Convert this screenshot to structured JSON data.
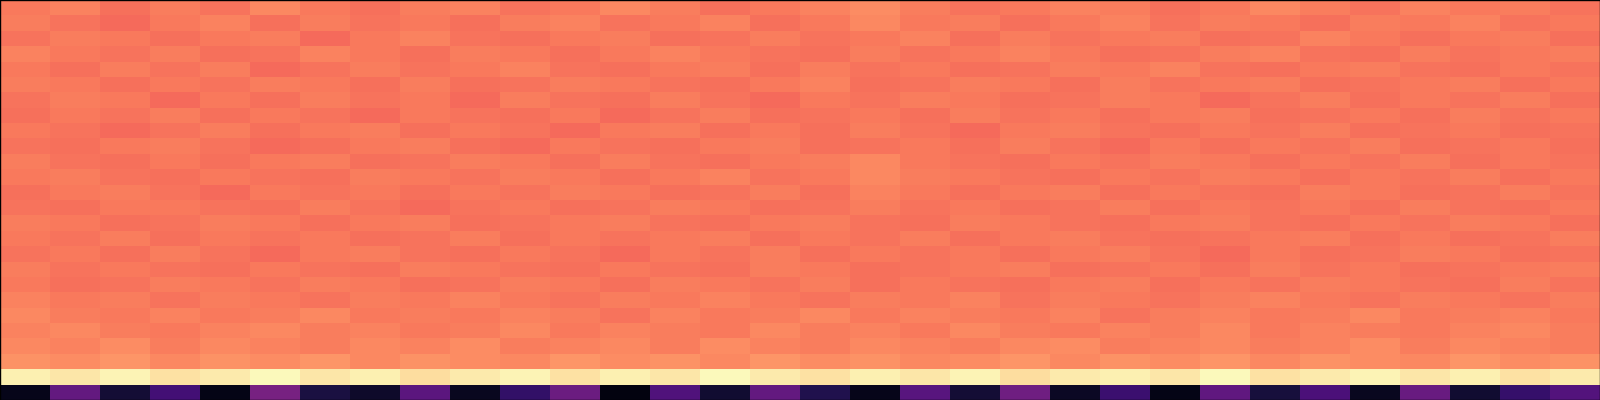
{
  "chart_data": {
    "type": "heatmap",
    "tick_labels": false,
    "color_range": [
      0,
      1
    ],
    "cells": [
      [
        0.72,
        0.74,
        0.7,
        0.73,
        0.71,
        0.75,
        0.72,
        0.7,
        0.73,
        0.74,
        0.71,
        0.72,
        0.75,
        0.73,
        0.7,
        0.72,
        0.74,
        0.76,
        0.73,
        0.71,
        0.72,
        0.74,
        0.73,
        0.7,
        0.72,
        0.75,
        0.73,
        0.71,
        0.74,
        0.72,
        0.73,
        0.71
      ],
      [
        0.73,
        0.71,
        0.69,
        0.72,
        0.74,
        0.7,
        0.73,
        0.71,
        0.72,
        0.7,
        0.73,
        0.74,
        0.71,
        0.72,
        0.74,
        0.7,
        0.72,
        0.75,
        0.72,
        0.73,
        0.7,
        0.72,
        0.74,
        0.71,
        0.73,
        0.72,
        0.7,
        0.73,
        0.72,
        0.74,
        0.71,
        0.72
      ],
      [
        0.71,
        0.73,
        0.72,
        0.7,
        0.72,
        0.73,
        0.69,
        0.72,
        0.74,
        0.71,
        0.7,
        0.72,
        0.73,
        0.7,
        0.71,
        0.73,
        0.71,
        0.72,
        0.74,
        0.7,
        0.73,
        0.71,
        0.72,
        0.73,
        0.7,
        0.71,
        0.74,
        0.72,
        0.7,
        0.72,
        0.73,
        0.7
      ],
      [
        0.74,
        0.72,
        0.71,
        0.73,
        0.7,
        0.71,
        0.74,
        0.72,
        0.7,
        0.73,
        0.72,
        0.7,
        0.72,
        0.74,
        0.72,
        0.71,
        0.7,
        0.73,
        0.71,
        0.72,
        0.74,
        0.72,
        0.7,
        0.71,
        0.73,
        0.74,
        0.71,
        0.7,
        0.73,
        0.71,
        0.72,
        0.73
      ],
      [
        0.72,
        0.7,
        0.73,
        0.71,
        0.73,
        0.69,
        0.71,
        0.73,
        0.71,
        0.72,
        0.74,
        0.71,
        0.7,
        0.72,
        0.73,
        0.7,
        0.73,
        0.71,
        0.72,
        0.7,
        0.71,
        0.73,
        0.72,
        0.74,
        0.71,
        0.7,
        0.72,
        0.73,
        0.71,
        0.7,
        0.72,
        0.71
      ],
      [
        0.73,
        0.72,
        0.7,
        0.72,
        0.71,
        0.73,
        0.72,
        0.7,
        0.73,
        0.7,
        0.71,
        0.73,
        0.72,
        0.71,
        0.7,
        0.72,
        0.74,
        0.7,
        0.71,
        0.73,
        0.72,
        0.7,
        0.73,
        0.71,
        0.72,
        0.73,
        0.7,
        0.71,
        0.72,
        0.73,
        0.7,
        0.72
      ],
      [
        0.71,
        0.73,
        0.72,
        0.69,
        0.72,
        0.7,
        0.73,
        0.71,
        0.72,
        0.69,
        0.73,
        0.71,
        0.7,
        0.73,
        0.71,
        0.69,
        0.72,
        0.71,
        0.73,
        0.72,
        0.7,
        0.71,
        0.73,
        0.72,
        0.69,
        0.71,
        0.73,
        0.7,
        0.72,
        0.71,
        0.73,
        0.7
      ],
      [
        0.7,
        0.72,
        0.71,
        0.73,
        0.7,
        0.72,
        0.71,
        0.69,
        0.72,
        0.71,
        0.7,
        0.72,
        0.69,
        0.71,
        0.73,
        0.7,
        0.71,
        0.72,
        0.7,
        0.73,
        0.71,
        0.72,
        0.7,
        0.72,
        0.73,
        0.7,
        0.71,
        0.72,
        0.7,
        0.73,
        0.71,
        0.72
      ],
      [
        0.72,
        0.71,
        0.69,
        0.71,
        0.73,
        0.7,
        0.72,
        0.73,
        0.7,
        0.72,
        0.71,
        0.69,
        0.72,
        0.73,
        0.7,
        0.72,
        0.7,
        0.73,
        0.71,
        0.69,
        0.72,
        0.73,
        0.71,
        0.7,
        0.72,
        0.71,
        0.73,
        0.7,
        0.71,
        0.72,
        0.7,
        0.71
      ],
      [
        0.71,
        0.7,
        0.72,
        0.73,
        0.71,
        0.69,
        0.7,
        0.72,
        0.73,
        0.7,
        0.69,
        0.72,
        0.71,
        0.7,
        0.72,
        0.73,
        0.7,
        0.71,
        0.72,
        0.7,
        0.73,
        0.71,
        0.69,
        0.72,
        0.7,
        0.72,
        0.71,
        0.73,
        0.7,
        0.71,
        0.72,
        0.7
      ],
      [
        0.73,
        0.71,
        0.7,
        0.72,
        0.7,
        0.72,
        0.73,
        0.7,
        0.71,
        0.73,
        0.72,
        0.7,
        0.73,
        0.71,
        0.7,
        0.72,
        0.73,
        0.75,
        0.72,
        0.71,
        0.7,
        0.72,
        0.71,
        0.73,
        0.72,
        0.7,
        0.72,
        0.71,
        0.73,
        0.7,
        0.72,
        0.71
      ],
      [
        0.72,
        0.73,
        0.71,
        0.7,
        0.72,
        0.71,
        0.7,
        0.73,
        0.72,
        0.71,
        0.73,
        0.72,
        0.7,
        0.72,
        0.74,
        0.71,
        0.72,
        0.75,
        0.73,
        0.72,
        0.71,
        0.7,
        0.72,
        0.71,
        0.73,
        0.72,
        0.7,
        0.72,
        0.71,
        0.73,
        0.7,
        0.72
      ],
      [
        0.7,
        0.72,
        0.73,
        0.71,
        0.69,
        0.72,
        0.71,
        0.72,
        0.7,
        0.72,
        0.71,
        0.73,
        0.72,
        0.7,
        0.71,
        0.73,
        0.7,
        0.74,
        0.72,
        0.7,
        0.72,
        0.73,
        0.7,
        0.72,
        0.71,
        0.7,
        0.73,
        0.72,
        0.7,
        0.71,
        0.73,
        0.71
      ],
      [
        0.71,
        0.7,
        0.72,
        0.72,
        0.71,
        0.7,
        0.73,
        0.71,
        0.69,
        0.71,
        0.72,
        0.7,
        0.71,
        0.73,
        0.72,
        0.7,
        0.71,
        0.73,
        0.71,
        0.72,
        0.7,
        0.71,
        0.73,
        0.7,
        0.72,
        0.71,
        0.72,
        0.7,
        0.73,
        0.71,
        0.7,
        0.72
      ],
      [
        0.73,
        0.72,
        0.7,
        0.71,
        0.73,
        0.72,
        0.7,
        0.72,
        0.73,
        0.7,
        0.71,
        0.72,
        0.73,
        0.71,
        0.7,
        0.72,
        0.73,
        0.71,
        0.7,
        0.73,
        0.72,
        0.71,
        0.7,
        0.72,
        0.73,
        0.71,
        0.7,
        0.72,
        0.71,
        0.73,
        0.72,
        0.7
      ],
      [
        0.72,
        0.71,
        0.73,
        0.7,
        0.72,
        0.71,
        0.72,
        0.7,
        0.71,
        0.73,
        0.7,
        0.72,
        0.71,
        0.72,
        0.73,
        0.7,
        0.72,
        0.71,
        0.73,
        0.7,
        0.72,
        0.73,
        0.71,
        0.7,
        0.71,
        0.72,
        0.73,
        0.7,
        0.72,
        0.7,
        0.71,
        0.73
      ],
      [
        0.71,
        0.72,
        0.7,
        0.73,
        0.71,
        0.69,
        0.72,
        0.73,
        0.71,
        0.7,
        0.72,
        0.71,
        0.69,
        0.72,
        0.71,
        0.73,
        0.7,
        0.72,
        0.71,
        0.72,
        0.7,
        0.72,
        0.73,
        0.71,
        0.69,
        0.72,
        0.7,
        0.71,
        0.73,
        0.72,
        0.7,
        0.71
      ],
      [
        0.73,
        0.71,
        0.72,
        0.71,
        0.7,
        0.72,
        0.71,
        0.7,
        0.73,
        0.72,
        0.71,
        0.7,
        0.72,
        0.71,
        0.7,
        0.73,
        0.72,
        0.7,
        0.71,
        0.72,
        0.73,
        0.7,
        0.71,
        0.72,
        0.7,
        0.73,
        0.71,
        0.72,
        0.7,
        0.71,
        0.72,
        0.73
      ],
      [
        0.72,
        0.7,
        0.71,
        0.73,
        0.72,
        0.71,
        0.73,
        0.72,
        0.7,
        0.71,
        0.73,
        0.72,
        0.7,
        0.73,
        0.72,
        0.71,
        0.73,
        0.7,
        0.72,
        0.71,
        0.7,
        0.72,
        0.73,
        0.7,
        0.72,
        0.71,
        0.73,
        0.72,
        0.71,
        0.7,
        0.73,
        0.71
      ],
      [
        0.74,
        0.72,
        0.73,
        0.71,
        0.73,
        0.72,
        0.71,
        0.73,
        0.72,
        0.74,
        0.72,
        0.71,
        0.73,
        0.72,
        0.74,
        0.72,
        0.71,
        0.73,
        0.72,
        0.74,
        0.71,
        0.73,
        0.72,
        0.71,
        0.73,
        0.74,
        0.72,
        0.71,
        0.73,
        0.72,
        0.71,
        0.73
      ],
      [
        0.75,
        0.73,
        0.72,
        0.74,
        0.72,
        0.73,
        0.75,
        0.72,
        0.73,
        0.72,
        0.74,
        0.73,
        0.71,
        0.74,
        0.72,
        0.73,
        0.75,
        0.72,
        0.74,
        0.73,
        0.72,
        0.74,
        0.71,
        0.73,
        0.74,
        0.72,
        0.73,
        0.75,
        0.72,
        0.73,
        0.74,
        0.72
      ],
      [
        0.74,
        0.75,
        0.73,
        0.72,
        0.74,
        0.75,
        0.73,
        0.74,
        0.72,
        0.73,
        0.75,
        0.72,
        0.74,
        0.73,
        0.72,
        0.75,
        0.73,
        0.74,
        0.72,
        0.75,
        0.73,
        0.72,
        0.74,
        0.73,
        0.75,
        0.72,
        0.74,
        0.73,
        0.72,
        0.74,
        0.75,
        0.73
      ],
      [
        0.75,
        0.74,
        0.76,
        0.73,
        0.75,
        0.74,
        0.73,
        0.75,
        0.74,
        0.76,
        0.73,
        0.74,
        0.75,
        0.73,
        0.76,
        0.74,
        0.73,
        0.75,
        0.74,
        0.73,
        0.75,
        0.76,
        0.73,
        0.74,
        0.75,
        0.73,
        0.74,
        0.76,
        0.73,
        0.75,
        0.74,
        0.73
      ],
      [
        0.77,
        0.76,
        0.78,
        0.75,
        0.77,
        0.76,
        0.78,
        0.75,
        0.77,
        0.76,
        0.75,
        0.78,
        0.76,
        0.77,
        0.75,
        0.78,
        0.76,
        0.77,
        0.75,
        0.76,
        0.78,
        0.75,
        0.77,
        0.76,
        0.78,
        0.75,
        0.77,
        0.76,
        0.75,
        0.78,
        0.76,
        0.77
      ],
      [
        0.97,
        0.95,
        0.98,
        0.94,
        0.96,
        0.99,
        0.95,
        0.97,
        0.93,
        0.96,
        0.98,
        0.94,
        0.97,
        0.95,
        0.99,
        0.96,
        0.94,
        0.97,
        0.95,
        0.98,
        0.93,
        0.96,
        0.97,
        0.95,
        0.99,
        0.94,
        0.96,
        0.98,
        0.95,
        0.97,
        0.94,
        0.96
      ],
      [
        0.05,
        0.3,
        0.1,
        0.22,
        0.04,
        0.35,
        0.12,
        0.08,
        0.28,
        0.06,
        0.18,
        0.32,
        0.03,
        0.25,
        0.09,
        0.3,
        0.14,
        0.05,
        0.27,
        0.1,
        0.33,
        0.07,
        0.2,
        0.04,
        0.29,
        0.11,
        0.24,
        0.06,
        0.31,
        0.09,
        0.19,
        0.26
      ]
    ]
  }
}
